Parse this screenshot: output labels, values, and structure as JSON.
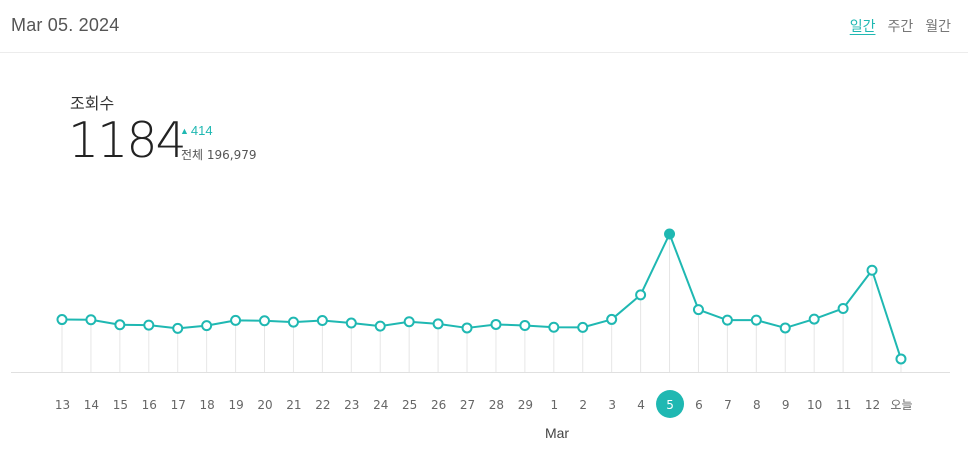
{
  "header": {
    "date": "Mar 05. 2024",
    "tabs": [
      {
        "label": "일간",
        "active": true
      },
      {
        "label": "주간",
        "active": false
      },
      {
        "label": "월간",
        "active": false
      }
    ]
  },
  "stat": {
    "label": "조회수",
    "value": "1184",
    "delta": "414",
    "total_label": "전체 196,979"
  },
  "colors": {
    "accent": "#1fb8b2",
    "grid": "#e6e6e6",
    "axis_text": "#666666"
  },
  "chart_data": {
    "type": "line",
    "categories": [
      "13",
      "14",
      "15",
      "16",
      "17",
      "18",
      "19",
      "20",
      "21",
      "22",
      "23",
      "24",
      "25",
      "26",
      "27",
      "28",
      "29",
      "1",
      "2",
      "3",
      "4",
      "5",
      "6",
      "7",
      "8",
      "9",
      "10",
      "11",
      "12",
      "오늘"
    ],
    "values": [
      450,
      448,
      405,
      402,
      374,
      398,
      443,
      440,
      428,
      442,
      420,
      394,
      431,
      413,
      378,
      408,
      399,
      384,
      383,
      451,
      662,
      1184,
      535,
      445,
      445,
      378,
      454,
      545,
      873,
      112
    ],
    "highlight_category": "5",
    "xlabel": "Mar",
    "ylabel": "",
    "ylim": [
      0,
      1400
    ],
    "grid": false,
    "legend": "none"
  }
}
